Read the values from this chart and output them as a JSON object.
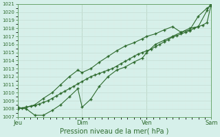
{
  "xlabel": "Pression niveau de la mer( hPa )",
  "bg_color": "#d6f0ea",
  "plot_bg_color": "#d6f0ea",
  "grid_major_color": "#c8e0d8",
  "grid_minor_color": "#dceee8",
  "line_color": "#2d6a2d",
  "spine_color": "#5a9a5a",
  "ylim": [
    1007,
    1021
  ],
  "yticks": [
    1007,
    1008,
    1009,
    1010,
    1011,
    1012,
    1013,
    1014,
    1015,
    1016,
    1017,
    1018,
    1019,
    1020,
    1021
  ],
  "day_labels": [
    "Jeu",
    "Dim",
    "Ven",
    "Sam"
  ],
  "day_positions": [
    0.0,
    0.333,
    0.667,
    1.0
  ],
  "vline_positions": [
    0.0,
    0.333,
    0.667,
    1.0
  ],
  "line1_x": [
    0.0,
    0.022,
    0.044,
    0.067,
    0.089,
    0.111,
    0.133,
    0.156,
    0.178,
    0.2,
    0.222,
    0.244,
    0.267,
    0.289,
    0.311,
    0.333,
    0.356,
    0.378,
    0.4,
    0.422,
    0.444,
    0.467,
    0.489,
    0.511,
    0.533,
    0.556,
    0.578,
    0.6,
    0.622,
    0.644,
    0.667,
    0.689,
    0.711,
    0.733,
    0.756,
    0.778,
    0.8,
    0.822,
    0.844,
    0.867,
    0.889,
    0.911,
    0.933,
    0.956,
    0.978,
    1.0
  ],
  "line1_y": [
    1008.0,
    1008.1,
    1008.2,
    1008.3,
    1008.4,
    1008.6,
    1008.8,
    1009.0,
    1009.3,
    1009.6,
    1009.9,
    1010.2,
    1010.5,
    1010.8,
    1011.1,
    1011.4,
    1011.7,
    1012.0,
    1012.2,
    1012.4,
    1012.6,
    1012.8,
    1013.0,
    1013.3,
    1013.6,
    1013.9,
    1014.2,
    1014.5,
    1014.8,
    1015.0,
    1015.2,
    1015.4,
    1015.7,
    1016.0,
    1016.3,
    1016.6,
    1016.9,
    1017.1,
    1017.3,
    1017.5,
    1017.7,
    1018.0,
    1018.2,
    1018.4,
    1018.7,
    1021.0
  ],
  "line2_x": [
    0.0,
    0.044,
    0.089,
    0.133,
    0.178,
    0.222,
    0.267,
    0.311,
    0.333,
    0.378,
    0.422,
    0.467,
    0.511,
    0.556,
    0.6,
    0.644,
    0.667,
    0.711,
    0.756,
    0.8,
    0.844,
    0.889,
    0.933,
    0.978,
    1.0
  ],
  "line2_y": [
    1008.2,
    1008.0,
    1007.2,
    1007.2,
    1007.8,
    1008.5,
    1009.5,
    1010.5,
    1008.2,
    1009.2,
    1010.8,
    1012.0,
    1012.8,
    1013.2,
    1013.8,
    1014.3,
    1015.0,
    1016.0,
    1016.5,
    1017.0,
    1017.5,
    1018.0,
    1018.2,
    1020.2,
    1021.2
  ],
  "line3_x": [
    0.0,
    0.044,
    0.089,
    0.133,
    0.178,
    0.222,
    0.267,
    0.311,
    0.333,
    0.378,
    0.422,
    0.467,
    0.511,
    0.556,
    0.6,
    0.644,
    0.667,
    0.711,
    0.756,
    0.8,
    0.844,
    0.889,
    0.933,
    0.978,
    1.0
  ],
  "line3_y": [
    1008.0,
    1008.2,
    1008.5,
    1009.3,
    1010.0,
    1011.0,
    1012.0,
    1012.8,
    1012.5,
    1013.0,
    1013.8,
    1014.5,
    1015.2,
    1015.8,
    1016.2,
    1016.7,
    1017.0,
    1017.3,
    1017.8,
    1018.2,
    1017.5,
    1017.8,
    1019.5,
    1020.5,
    1020.8
  ]
}
